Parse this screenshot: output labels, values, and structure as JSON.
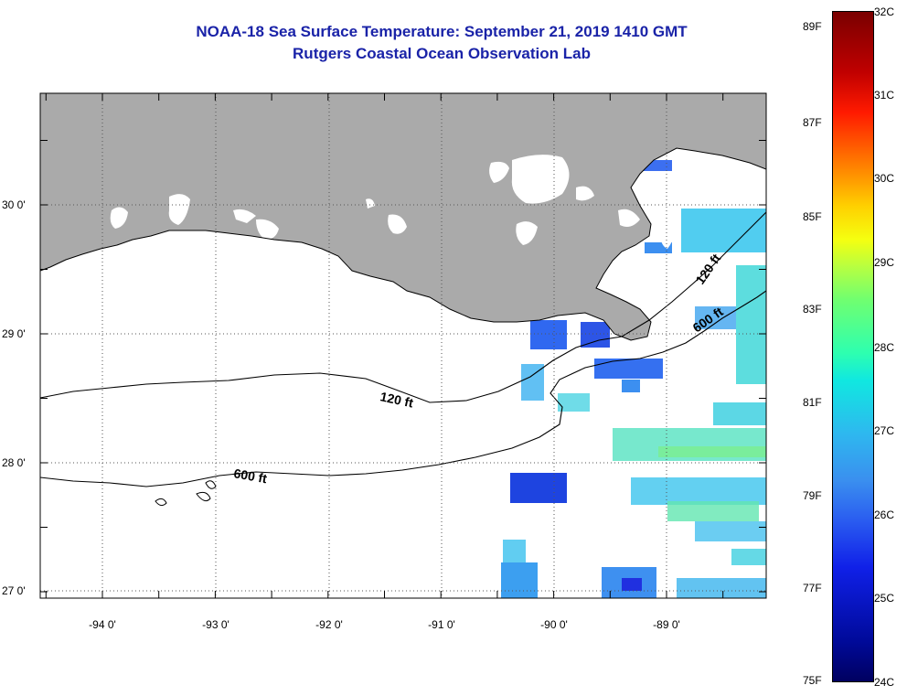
{
  "title": {
    "line1": "NOAA-18 Sea Surface Temperature:  September 21, 2019 1410 GMT",
    "line2": "Rutgers Coastal Ocean Observation Lab"
  },
  "map": {
    "lat_labels": [
      "30 0'",
      "29 0'",
      "28 0'",
      "27 0'"
    ],
    "lon_labels": [
      "-94 0'",
      "-93 0'",
      "-92 0'",
      "-91 0'",
      "-90 0'",
      "-89 0'"
    ],
    "contours": [
      "120 ft",
      "120 ft",
      "600 ft",
      "600 ft"
    ],
    "colors": {
      "land": "#aaaaaa",
      "cloud": "#ffffff",
      "frame": "#000000"
    }
  },
  "colorbar": {
    "fahrenheit": [
      "89F",
      "87F",
      "85F",
      "83F",
      "81F",
      "79F",
      "77F",
      "75F"
    ],
    "celsius": [
      "32C",
      "31C",
      "30C",
      "29C",
      "28C",
      "27C",
      "26C",
      "25C",
      "24C"
    ]
  }
}
